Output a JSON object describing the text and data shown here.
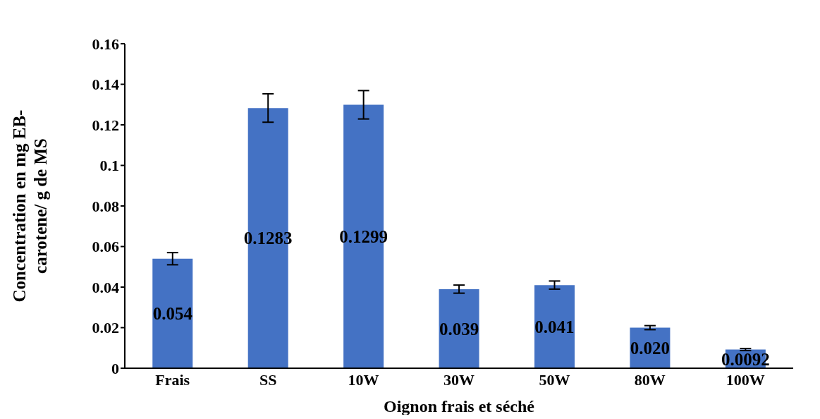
{
  "chart_data": {
    "type": "bar",
    "xlabel": "Oignon frais et séché",
    "ylabel": "Concentration en mg EB-carotene/ g de MS",
    "categories": [
      "Frais",
      "SS",
      "10W",
      "30W",
      "50W",
      "80W",
      "100W"
    ],
    "values": [
      0.054,
      0.1283,
      0.1299,
      0.039,
      0.041,
      0.02,
      0.0092
    ],
    "value_labels": [
      "0.054",
      "0.1283",
      "0.1299",
      "0.039",
      "0.041",
      "0.020",
      "0.0092"
    ],
    "errors": [
      0.003,
      0.007,
      0.007,
      0.002,
      0.002,
      0.001,
      0.0005
    ],
    "color": "#4472c4",
    "ylim": [
      0,
      0.16
    ],
    "yticks": [
      0,
      0.02,
      0.04,
      0.06,
      0.08,
      0.1,
      0.12,
      0.14,
      0.16
    ],
    "grid": false,
    "legend": false
  }
}
